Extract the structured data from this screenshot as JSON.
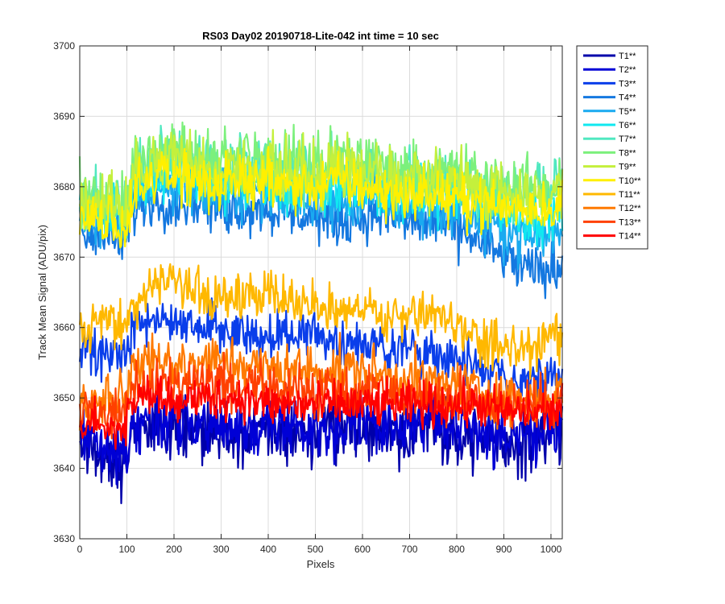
{
  "chart_data": {
    "type": "line",
    "title": "RS03 Day02 20190718-Lite-042 int time = 10 sec",
    "xlabel": "Pixels",
    "ylabel": "Track Mean Signal (ADU/pix)",
    "xlim": [
      0,
      1024
    ],
    "ylim": [
      3630,
      3700
    ],
    "xticks": [
      0,
      100,
      200,
      300,
      400,
      500,
      600,
      700,
      800,
      900,
      1000
    ],
    "yticks": [
      3630,
      3640,
      3650,
      3660,
      3670,
      3680,
      3690,
      3700
    ],
    "grid": true,
    "legend_position": "outside-top-right",
    "x": [
      0,
      50,
      100,
      110,
      150,
      200,
      250,
      300,
      350,
      400,
      450,
      500,
      550,
      600,
      650,
      700,
      750,
      800,
      850,
      900,
      950,
      1000,
      1024
    ],
    "series": [
      {
        "name": "T1**",
        "color": "#0000AA",
        "noise": 3.5,
        "values": [
          3644,
          3642,
          3641,
          3645,
          3646,
          3646,
          3645,
          3645,
          3644,
          3645,
          3645,
          3645,
          3645,
          3646,
          3645,
          3646,
          3646,
          3645,
          3644,
          3643,
          3644,
          3645,
          3646
        ]
      },
      {
        "name": "T2**",
        "color": "#0000D6",
        "noise": 3.2,
        "values": [
          3645,
          3643,
          3642,
          3646,
          3647,
          3647,
          3646,
          3646,
          3645,
          3646,
          3646,
          3646,
          3646,
          3647,
          3646,
          3647,
          3647,
          3646,
          3645,
          3644,
          3645,
          3646,
          3647
        ]
      },
      {
        "name": "T3**",
        "color": "#0A3EEA",
        "noise": 2.6,
        "values": [
          3657,
          3656,
          3656,
          3659,
          3661,
          3661,
          3660,
          3660,
          3659,
          3659,
          3659,
          3659,
          3658,
          3658,
          3657,
          3657,
          3657,
          3655,
          3654,
          3653,
          3652,
          3653,
          3654
        ]
      },
      {
        "name": "T4**",
        "color": "#1478E0",
        "noise": 2.8,
        "values": [
          3674,
          3673,
          3672,
          3677,
          3678,
          3678,
          3678,
          3677,
          3677,
          3677,
          3676,
          3676,
          3675,
          3676,
          3676,
          3675,
          3675,
          3674,
          3672,
          3670,
          3668,
          3668,
          3669
        ]
      },
      {
        "name": "T5**",
        "color": "#1AAAF0",
        "noise": 3.0,
        "values": [
          3676,
          3675,
          3675,
          3679,
          3680,
          3680,
          3680,
          3679,
          3679,
          3679,
          3678,
          3678,
          3678,
          3678,
          3678,
          3677,
          3677,
          3677,
          3675,
          3674,
          3673,
          3673,
          3674
        ]
      },
      {
        "name": "T6**",
        "color": "#10E8F0",
        "noise": 3.0,
        "values": [
          3677,
          3676,
          3676,
          3680,
          3681,
          3682,
          3681,
          3680,
          3681,
          3680,
          3680,
          3680,
          3680,
          3680,
          3679,
          3679,
          3679,
          3679,
          3678,
          3677,
          3676,
          3676,
          3677
        ]
      },
      {
        "name": "T7**",
        "color": "#50E8C0",
        "noise": 3.2,
        "values": [
          3678,
          3678,
          3677,
          3681,
          3683,
          3684,
          3683,
          3682,
          3683,
          3683,
          3682,
          3682,
          3683,
          3682,
          3682,
          3681,
          3681,
          3681,
          3680,
          3679,
          3679,
          3679,
          3680
        ]
      },
      {
        "name": "T8**",
        "color": "#7CF07C",
        "noise": 3.2,
        "values": [
          3679,
          3679,
          3678,
          3682,
          3684,
          3685,
          3684,
          3683,
          3684,
          3684,
          3683,
          3683,
          3684,
          3684,
          3683,
          3682,
          3682,
          3682,
          3681,
          3680,
          3680,
          3680,
          3681
        ]
      },
      {
        "name": "T9**",
        "color": "#C4F03C",
        "noise": 3.2,
        "values": [
          3678,
          3678,
          3677,
          3681,
          3683,
          3684,
          3683,
          3682,
          3683,
          3683,
          3682,
          3682,
          3683,
          3683,
          3682,
          3681,
          3681,
          3681,
          3680,
          3679,
          3679,
          3679,
          3680
        ]
      },
      {
        "name": "T10**",
        "color": "#FFF000",
        "noise": 2.8,
        "values": [
          3675,
          3675,
          3674,
          3679,
          3681,
          3682,
          3681,
          3680,
          3681,
          3681,
          3680,
          3680,
          3681,
          3680,
          3679,
          3679,
          3679,
          3678,
          3678,
          3677,
          3677,
          3677,
          3678
        ]
      },
      {
        "name": "T11**",
        "color": "#FFB800",
        "noise": 2.5,
        "values": [
          3660,
          3661,
          3661,
          3663,
          3665,
          3666,
          3665,
          3664,
          3665,
          3665,
          3664,
          3663,
          3663,
          3663,
          3661,
          3662,
          3662,
          3660,
          3658,
          3657,
          3657,
          3658,
          3659
        ]
      },
      {
        "name": "T12**",
        "color": "#FF7A00",
        "noise": 2.8,
        "values": [
          3650,
          3650,
          3650,
          3654,
          3655,
          3655,
          3655,
          3655,
          3655,
          3654,
          3654,
          3654,
          3654,
          3654,
          3653,
          3653,
          3652,
          3652,
          3651,
          3650,
          3650,
          3650,
          3651
        ]
      },
      {
        "name": "T13**",
        "color": "#FF4000",
        "noise": 2.6,
        "values": [
          3648,
          3648,
          3648,
          3651,
          3652,
          3652,
          3652,
          3652,
          3652,
          3651,
          3651,
          3651,
          3651,
          3651,
          3651,
          3650,
          3650,
          3650,
          3650,
          3649,
          3649,
          3649,
          3650
        ]
      },
      {
        "name": "T14**",
        "color": "#FF0000",
        "noise": 2.4,
        "values": [
          3646,
          3646,
          3646,
          3649,
          3650,
          3650,
          3650,
          3650,
          3650,
          3649,
          3649,
          3649,
          3649,
          3649,
          3649,
          3649,
          3649,
          3649,
          3649,
          3648,
          3648,
          3648,
          3649
        ]
      }
    ]
  }
}
